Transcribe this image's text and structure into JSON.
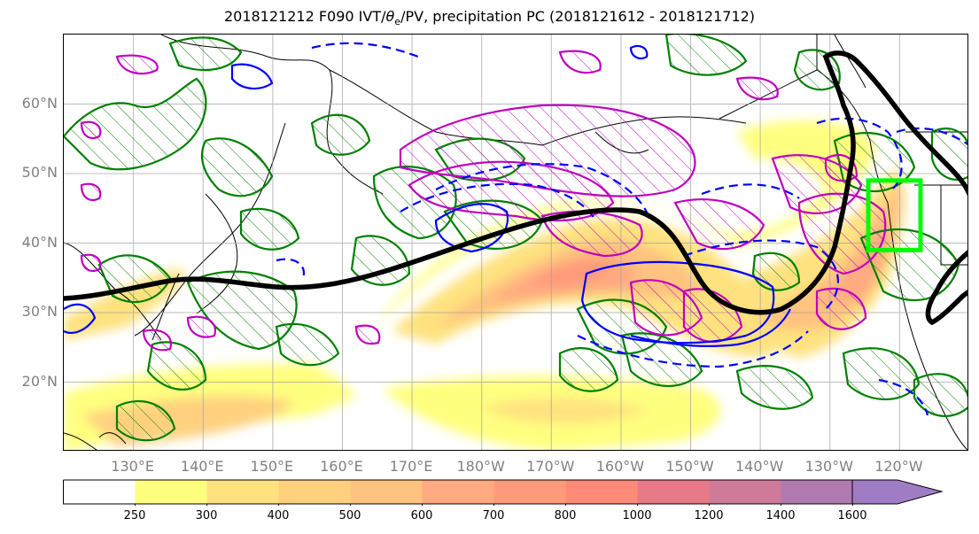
{
  "title": "2018121212 F090 IVT/θe/PV, precipitation PC (2018121612 - 2018121712)",
  "title_parts": {
    "pre": "2018121212 F090 IVT/",
    "theta": "θ",
    "sub": "e",
    "post": "/PV, precipitation PC (2018121612 - 2018121712)"
  },
  "map": {
    "lon_range": [
      120,
      250
    ],
    "lat_range": [
      10,
      70
    ],
    "lat_labels": [
      "20°N",
      "30°N",
      "40°N",
      "50°N",
      "60°N"
    ],
    "lat_values": [
      20,
      30,
      40,
      50,
      60
    ],
    "lon_labels": [
      "130°E",
      "140°E",
      "150°E",
      "160°E",
      "170°E",
      "180°W",
      "170°W",
      "160°W",
      "150°W",
      "140°W",
      "130°W",
      "120°W"
    ],
    "lon_values": [
      130,
      140,
      150,
      160,
      170,
      180,
      190,
      200,
      210,
      220,
      230,
      240
    ],
    "target_box": {
      "lon": [
        235.5,
        243
      ],
      "lat": [
        39,
        49
      ],
      "color": "#00ff00"
    },
    "colors": {
      "pv": "#000000",
      "theta_e": "#0000ff",
      "precip_pc_pos": "#008000",
      "precip_pc_neg": "#c000c0",
      "gridlines": "#a0a0a0",
      "tick_labels": "#808080"
    }
  },
  "colorbar": {
    "levels": [
      "250",
      "300",
      "400",
      "500",
      "600",
      "700",
      "800",
      "1000",
      "1200",
      "1400",
      "1600"
    ],
    "colors": [
      "#ffffff",
      "#ffff7f",
      "#ffe27f",
      "#ffd17f",
      "#ffc27f",
      "#ffaa80",
      "#ff9a7a",
      "#ff8a78",
      "#e87a88",
      "#d07a9a",
      "#b07ab0",
      "#a07cc4"
    ]
  }
}
